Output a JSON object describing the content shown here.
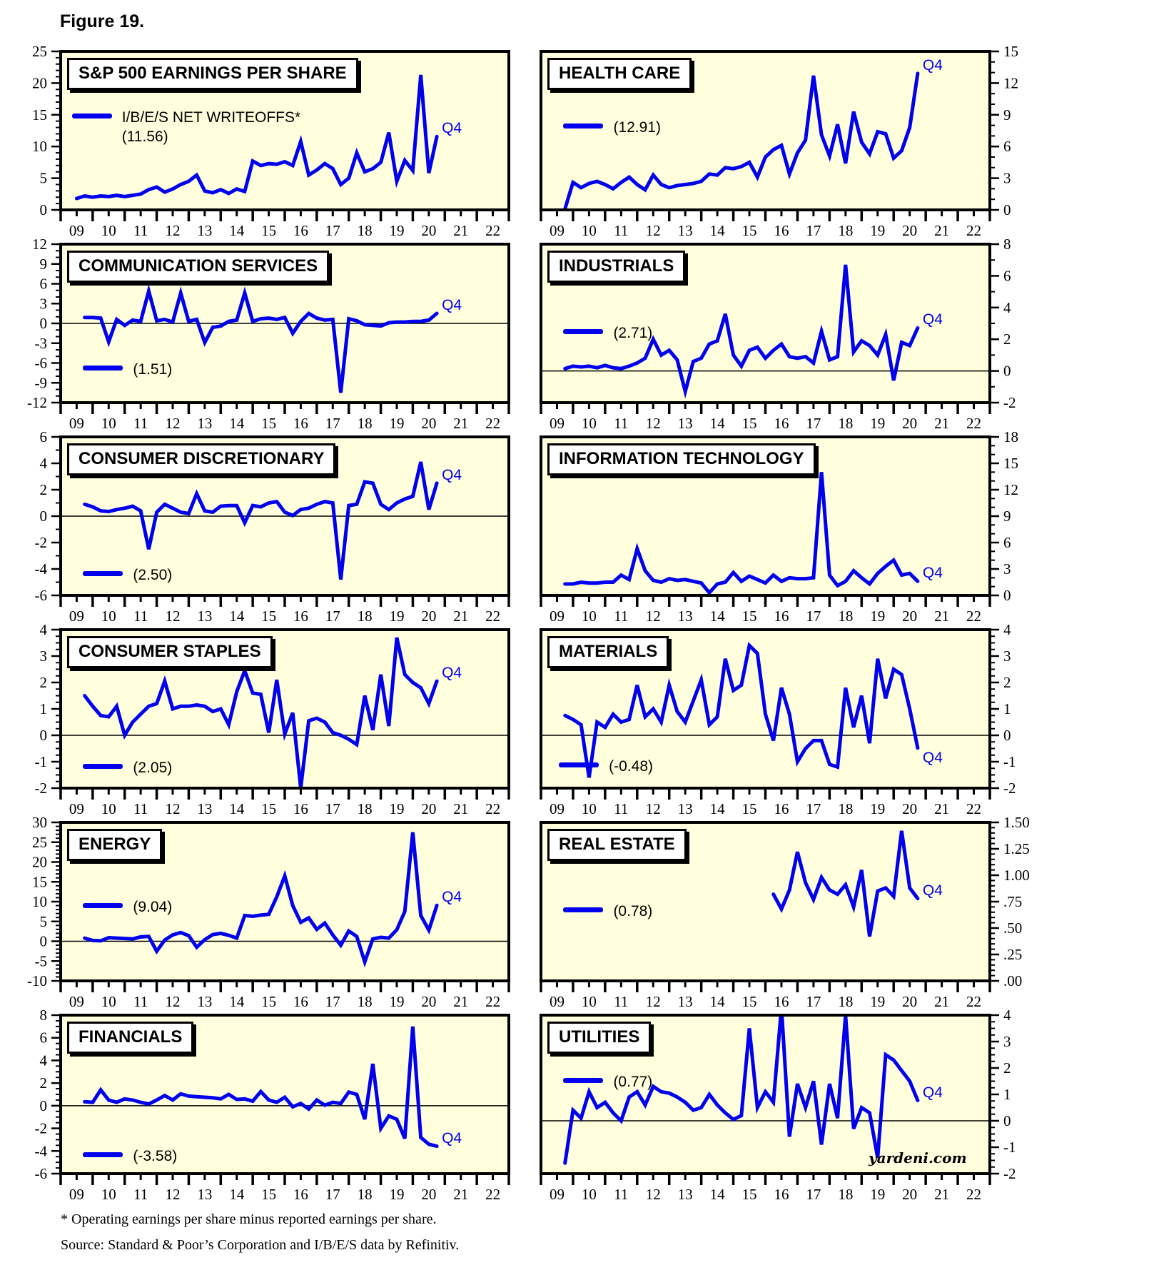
{
  "figure": {
    "title": "Figure 19."
  },
  "annotations": {
    "q4": "Q4",
    "watermark": "yardeni.com"
  },
  "footnotes": [
    "* Operating earnings per share minus reported earnings per share.",
    "Source: Standard & Poor’s Corporation and I/B/E/S data by Refinitiv."
  ],
  "colors": {
    "line": "#0000EE",
    "panel_bg": "#FFFFDE",
    "border": "#000000",
    "annotation": "#0000EE"
  },
  "x_axis": {
    "start_year": 2009,
    "end_year": 2023,
    "year_labels": [
      "09",
      "10",
      "11",
      "12",
      "13",
      "14",
      "15",
      "16",
      "17",
      "18",
      "19",
      "20",
      "21",
      "22"
    ]
  },
  "chart_data": [
    {
      "type": "line",
      "title": "S&P 500 EARNINGS PER SHARE",
      "legend_lines": [
        "I/B/E/S NET WRITEOFFS*",
        "(11.56)"
      ],
      "axis_side": "left",
      "ylim": [
        0,
        25
      ],
      "y_step": 5,
      "y_minor": 4,
      "y_ticks": [
        "25",
        "20",
        "15",
        "10",
        "5",
        "0"
      ],
      "zero_line": false,
      "series_start": 2009.5,
      "frequency": "quarterly",
      "values": [
        1.8,
        2.2,
        2.0,
        2.2,
        2.1,
        2.3,
        2.1,
        2.3,
        2.5,
        3.2,
        3.6,
        2.8,
        3.3,
        4.0,
        4.5,
        5.5,
        3.0,
        2.7,
        3.2,
        2.6,
        3.3,
        2.9,
        7.7,
        7.0,
        7.3,
        7.2,
        7.6,
        7.0,
        10.8,
        5.5,
        6.3,
        7.3,
        6.5,
        4.0,
        5.0,
        9.0,
        6.0,
        6.5,
        7.5,
        12.2,
        4.5,
        7.8,
        6.2,
        21.3,
        5.8,
        11.56
      ],
      "legend_pos": [
        0.025,
        0.355
      ]
    },
    {
      "type": "line",
      "title": "HEALTH CARE",
      "legend_lines": [
        "(12.91)"
      ],
      "axis_side": "right",
      "ylim": [
        0,
        15
      ],
      "y_step": 3,
      "y_minor": 2,
      "y_ticks": [
        "15",
        "12",
        "9",
        "6",
        "3",
        "0"
      ],
      "zero_line": false,
      "series_start": 2009.75,
      "frequency": "quarterly",
      "values": [
        0.1,
        2.6,
        2.1,
        2.5,
        2.7,
        2.4,
        2.0,
        2.6,
        3.1,
        2.4,
        1.9,
        3.3,
        2.4,
        2.1,
        2.3,
        2.4,
        2.5,
        2.7,
        3.4,
        3.3,
        4.0,
        3.9,
        4.1,
        4.5,
        3.1,
        5.0,
        5.7,
        6.1,
        3.4,
        5.4,
        6.6,
        12.7,
        7.1,
        5.1,
        8.1,
        4.4,
        9.3,
        6.4,
        5.3,
        7.4,
        7.2,
        4.9,
        5.6,
        7.8,
        12.91
      ],
      "legend_pos": [
        0.05,
        0.42
      ]
    },
    {
      "type": "line",
      "title": "COMMUNICATION SERVICES",
      "legend_lines": [
        "(1.51)"
      ],
      "axis_side": "left",
      "ylim": [
        -12,
        12
      ],
      "y_step": 3,
      "y_minor": 2,
      "y_ticks": [
        "12",
        "9",
        "6",
        "3",
        "0",
        "-3",
        "-6",
        "-9",
        "-12"
      ],
      "zero_line": true,
      "series_start": 2009.75,
      "frequency": "quarterly",
      "values": [
        0.9,
        0.9,
        0.8,
        -2.8,
        0.6,
        -0.3,
        0.5,
        0.3,
        4.9,
        0.4,
        0.6,
        0.2,
        4.6,
        0.3,
        0.6,
        -2.9,
        -0.6,
        -0.4,
        0.3,
        0.5,
        4.6,
        0.3,
        0.7,
        0.8,
        0.6,
        0.9,
        -1.5,
        0.3,
        1.5,
        0.8,
        0.5,
        0.6,
        -10.5,
        0.7,
        0.4,
        -0.2,
        -0.3,
        -0.4,
        0.1,
        0.2,
        0.2,
        0.3,
        0.3,
        0.5,
        1.51
      ],
      "legend_pos": [
        0.05,
        0.73
      ]
    },
    {
      "type": "line",
      "title": "INDUSTRIALS",
      "legend_lines": [
        "(2.71)"
      ],
      "axis_side": "right",
      "ylim": [
        -2,
        8
      ],
      "y_step": 2,
      "y_minor": 1,
      "y_ticks": [
        "8",
        "6",
        "4",
        "2",
        "0",
        "-2"
      ],
      "zero_line": true,
      "series_start": 2009.75,
      "frequency": "quarterly",
      "values": [
        0.15,
        0.3,
        0.25,
        0.3,
        0.2,
        0.35,
        0.2,
        0.15,
        0.3,
        0.5,
        0.8,
        2.0,
        1.0,
        1.3,
        0.7,
        -1.3,
        0.6,
        0.8,
        1.7,
        1.9,
        3.6,
        1.0,
        0.3,
        1.3,
        1.5,
        0.8,
        1.3,
        1.7,
        0.9,
        0.8,
        0.9,
        0.5,
        2.5,
        0.7,
        0.9,
        6.7,
        1.2,
        1.9,
        1.6,
        1.0,
        2.3,
        -0.6,
        1.8,
        1.6,
        2.71
      ],
      "legend_pos": [
        0.05,
        0.5
      ]
    },
    {
      "type": "line",
      "title": "CONSUMER DISCRETIONARY",
      "legend_lines": [
        "(2.50)"
      ],
      "axis_side": "left",
      "ylim": [
        -6,
        6
      ],
      "y_step": 2,
      "y_minor": 1,
      "y_ticks": [
        "6",
        "4",
        "2",
        "0",
        "-2",
        "-4",
        "-6"
      ],
      "zero_line": true,
      "series_start": 2009.75,
      "frequency": "quarterly",
      "values": [
        0.9,
        0.7,
        0.4,
        0.35,
        0.5,
        0.6,
        0.75,
        0.4,
        -2.5,
        0.3,
        0.9,
        0.6,
        0.3,
        0.2,
        1.7,
        0.4,
        0.3,
        0.75,
        0.8,
        0.8,
        -0.5,
        0.8,
        0.7,
        1.0,
        1.1,
        0.3,
        0.05,
        0.5,
        0.6,
        0.9,
        1.1,
        1.0,
        -4.8,
        0.8,
        0.9,
        2.6,
        2.5,
        0.9,
        0.5,
        1.0,
        1.3,
        1.5,
        4.1,
        0.5,
        2.5
      ],
      "legend_pos": [
        0.05,
        0.81
      ]
    },
    {
      "type": "line",
      "title": "INFORMATION TECHNOLOGY",
      "legend_lines": [],
      "axis_side": "right",
      "ylim": [
        0,
        18
      ],
      "y_step": 3,
      "y_minor": 2,
      "y_ticks": [
        "18",
        "15",
        "12",
        "9",
        "6",
        "3",
        "0"
      ],
      "zero_line": false,
      "series_start": 2009.75,
      "frequency": "quarterly",
      "values": [
        1.3,
        1.3,
        1.5,
        1.4,
        1.4,
        1.5,
        1.5,
        2.3,
        1.8,
        5.3,
        2.8,
        1.7,
        1.5,
        1.9,
        1.7,
        1.8,
        1.6,
        1.4,
        0.3,
        1.3,
        1.5,
        2.6,
        1.6,
        2.2,
        1.8,
        1.4,
        2.3,
        1.6,
        2.0,
        1.9,
        1.9,
        2.0,
        14.0,
        2.3,
        1.1,
        1.6,
        2.8,
        2.0,
        1.3,
        2.5,
        3.3,
        4.0,
        2.3,
        2.5,
        1.6
      ],
      "legend_pos": [
        0.05,
        0.5
      ]
    },
    {
      "type": "line",
      "title": "CONSUMER STAPLES",
      "legend_lines": [
        "(2.05)"
      ],
      "axis_side": "left",
      "ylim": [
        -2,
        4
      ],
      "y_step": 1,
      "y_minor": 3,
      "y_ticks": [
        "4",
        "3",
        "2",
        "1",
        "0",
        "-1",
        "-2"
      ],
      "zero_line": true,
      "series_start": 2009.75,
      "frequency": "quarterly",
      "values": [
        1.5,
        1.1,
        0.75,
        0.7,
        1.1,
        0.0,
        0.5,
        0.8,
        1.1,
        1.2,
        2.05,
        1.0,
        1.1,
        1.1,
        1.15,
        1.1,
        0.9,
        1.0,
        0.4,
        1.65,
        2.45,
        1.6,
        1.55,
        0.1,
        2.1,
        0.05,
        0.85,
        -2.0,
        0.55,
        0.65,
        0.5,
        0.1,
        0.0,
        -0.15,
        -0.35,
        1.5,
        0.2,
        2.3,
        0.35,
        3.7,
        2.3,
        2.0,
        1.8,
        1.2,
        2.05
      ],
      "legend_pos": [
        0.05,
        0.81
      ]
    },
    {
      "type": "line",
      "title": "MATERIALS",
      "legend_lines": [
        "(-0.48)"
      ],
      "axis_side": "right",
      "ylim": [
        -2,
        4
      ],
      "y_step": 1,
      "y_minor": 3,
      "y_ticks": [
        "4",
        "3",
        "2",
        "1",
        "0",
        "-1",
        "-2"
      ],
      "zero_line": true,
      "series_start": 2009.75,
      "frequency": "quarterly",
      "values": [
        0.75,
        0.6,
        0.4,
        -1.6,
        0.5,
        0.3,
        0.8,
        0.5,
        0.6,
        1.9,
        0.7,
        1.0,
        0.5,
        1.9,
        0.9,
        0.5,
        1.3,
        2.1,
        0.4,
        0.7,
        2.9,
        1.7,
        1.9,
        3.4,
        3.1,
        0.8,
        -0.2,
        1.8,
        0.8,
        -1.0,
        -0.5,
        -0.2,
        -0.2,
        -1.1,
        -1.2,
        1.8,
        0.3,
        1.5,
        -0.3,
        2.9,
        1.4,
        2.5,
        2.3,
        1.0,
        -0.48
      ],
      "legend_pos": [
        0.04,
        0.8
      ]
    },
    {
      "type": "line",
      "title": "ENERGY",
      "legend_lines": [
        "(9.04)"
      ],
      "axis_side": "left",
      "ylim": [
        -10,
        30
      ],
      "y_step": 5,
      "y_minor": 4,
      "y_ticks": [
        "30",
        "25",
        "20",
        "15",
        "10",
        "5",
        "0",
        "-5",
        "-10"
      ],
      "zero_line": true,
      "series_start": 2009.75,
      "frequency": "quarterly",
      "values": [
        0.8,
        0.2,
        0.1,
        0.9,
        0.8,
        0.7,
        0.6,
        1.1,
        1.2,
        -2.5,
        0.3,
        1.6,
        2.2,
        1.4,
        -1.5,
        0.4,
        1.7,
        2.0,
        1.5,
        0.8,
        6.5,
        6.3,
        6.6,
        6.8,
        11.2,
        16.5,
        9.0,
        4.8,
        5.9,
        3.0,
        4.6,
        1.6,
        -1.0,
        2.6,
        1.2,
        -5.2,
        0.6,
        1.0,
        0.8,
        2.9,
        7.5,
        27.5,
        6.5,
        2.8,
        9.04
      ],
      "legend_pos": [
        0.05,
        0.475
      ]
    },
    {
      "type": "line",
      "title": "REAL ESTATE",
      "legend_lines": [
        "(0.78)"
      ],
      "axis_side": "right",
      "ylim": [
        0,
        1.5
      ],
      "y_step": 0.25,
      "y_minor": 4,
      "y_ticks": [
        "1.50",
        "1.25",
        "1.00",
        ".75",
        ".50",
        ".25",
        ".00"
      ],
      "zero_line": false,
      "series_start": 2016.25,
      "frequency": "quarterly",
      "values": [
        0.82,
        0.68,
        0.86,
        1.22,
        0.93,
        0.77,
        0.98,
        0.86,
        0.82,
        0.91,
        0.7,
        1.05,
        0.42,
        0.85,
        0.88,
        0.8,
        1.42,
        0.88,
        0.78
      ],
      "legend_pos": [
        0.05,
        0.5
      ]
    },
    {
      "type": "line",
      "title": "FINANCIALS",
      "legend_lines": [
        "(-3.58)"
      ],
      "axis_side": "left",
      "ylim": [
        -6,
        8
      ],
      "y_step": 2,
      "y_minor": 3,
      "y_ticks": [
        "8",
        "6",
        "4",
        "2",
        "0",
        "-2",
        "-4",
        "-6"
      ],
      "zero_line": true,
      "series_start": 2009.75,
      "frequency": "quarterly",
      "values": [
        0.35,
        0.3,
        1.4,
        0.5,
        0.3,
        0.6,
        0.5,
        0.3,
        0.15,
        0.5,
        0.9,
        0.5,
        1.05,
        0.85,
        0.8,
        0.75,
        0.7,
        0.6,
        1.0,
        0.55,
        0.6,
        0.4,
        1.25,
        0.5,
        0.3,
        0.75,
        -0.1,
        0.2,
        -0.3,
        0.5,
        0.05,
        0.3,
        0.2,
        1.2,
        1.0,
        -1.2,
        3.7,
        -2.0,
        -0.9,
        -1.2,
        -2.9,
        7.0,
        -2.8,
        -3.4,
        -3.58
      ],
      "legend_pos": [
        0.05,
        0.83
      ]
    },
    {
      "type": "line",
      "title": "UTILITIES",
      "legend_lines": [
        "(0.77)"
      ],
      "axis_side": "right",
      "ylim": [
        -2,
        4
      ],
      "y_step": 1,
      "y_minor": 3,
      "y_ticks": [
        "4",
        "3",
        "2",
        "1",
        "0",
        "-1",
        "-2"
      ],
      "zero_line": true,
      "series_start": 2009.75,
      "frequency": "quarterly",
      "values": [
        -1.6,
        0.4,
        0.1,
        1.1,
        0.5,
        0.7,
        0.3,
        0.0,
        0.9,
        1.1,
        0.6,
        1.3,
        1.1,
        1.05,
        0.9,
        0.7,
        0.4,
        0.5,
        1.0,
        0.6,
        0.3,
        0.05,
        0.2,
        3.5,
        0.5,
        1.1,
        0.7,
        4.3,
        -0.6,
        1.4,
        0.5,
        1.5,
        -0.9,
        1.4,
        0.1,
        4.0,
        -0.3,
        0.5,
        0.3,
        -1.4,
        2.5,
        2.3,
        1.9,
        1.5,
        0.77
      ],
      "legend_pos": [
        0.05,
        0.36
      ]
    }
  ]
}
